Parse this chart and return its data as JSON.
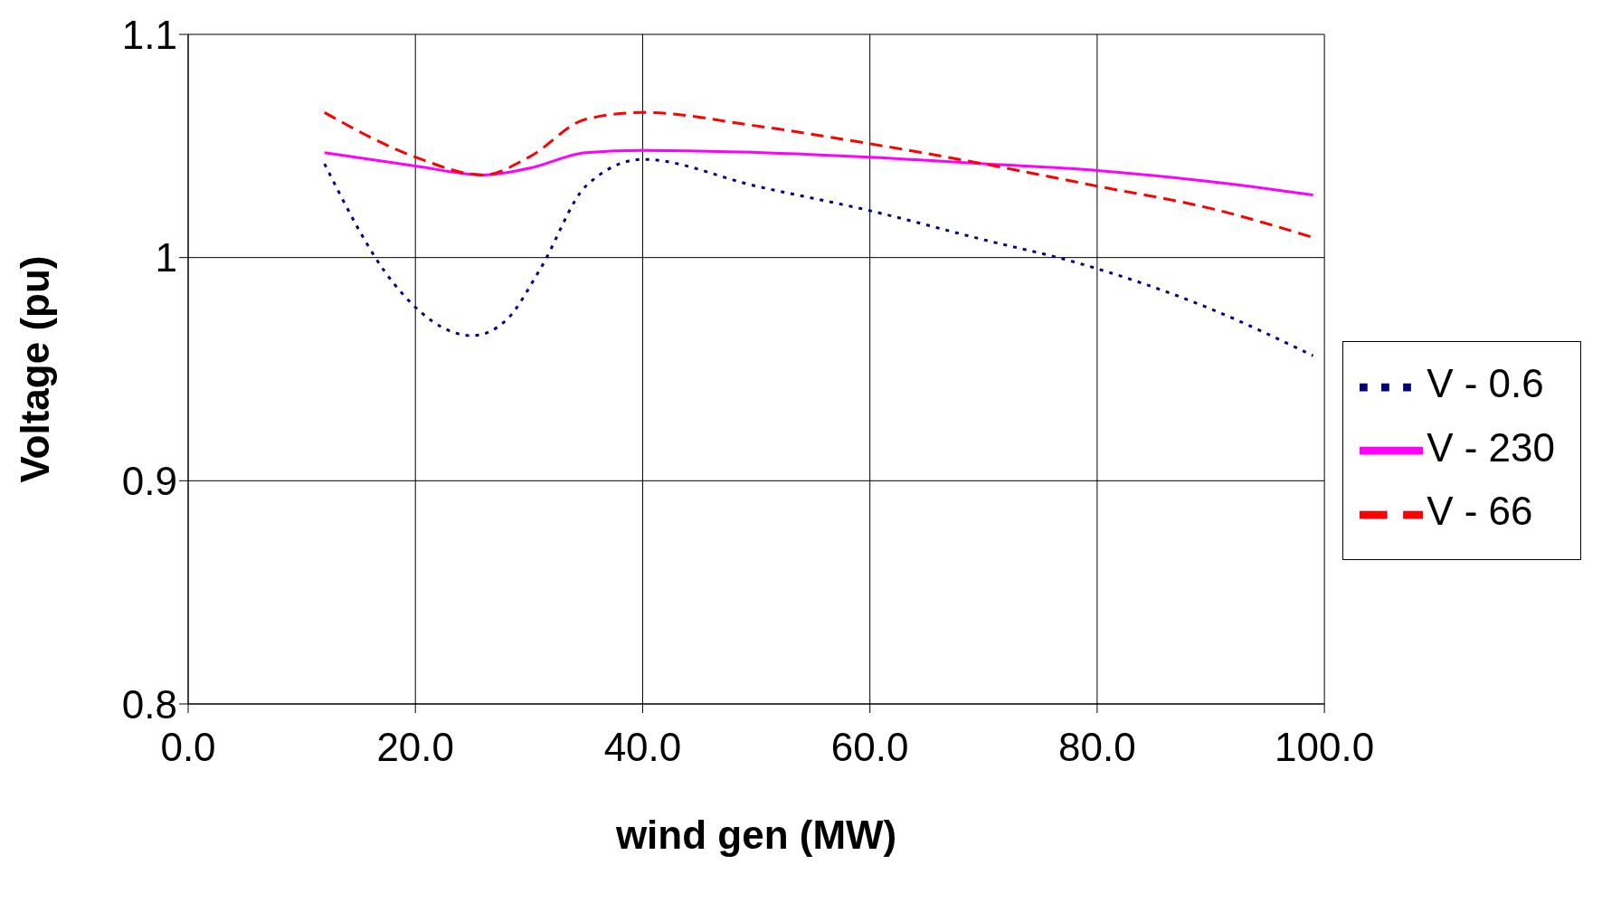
{
  "chart_data": {
    "type": "line",
    "xlabel": "wind gen (MW)",
    "ylabel": "Voltage (pu)",
    "xlim": [
      0,
      100
    ],
    "xticks": [
      {
        "value": 0,
        "label": "0.0"
      },
      {
        "value": 20,
        "label": "20.0"
      },
      {
        "value": 40,
        "label": "40.0"
      },
      {
        "value": 60,
        "label": "60.0"
      },
      {
        "value": 80,
        "label": "80.0"
      },
      {
        "value": 100,
        "label": "100.0"
      }
    ],
    "ylim": [
      0.8,
      1.1
    ],
    "yticks": [
      0.8,
      0.9,
      1,
      1.1
    ],
    "grid": true,
    "legend": "right",
    "marker": "none",
    "series": [
      {
        "name": "V - 0.6",
        "color": "#000080",
        "line_style": "dotted",
        "x": [
          12,
          18,
          25,
          28,
          31,
          35,
          40,
          50,
          60,
          70,
          78,
          90,
          99
        ],
        "values": [
          1.042,
          0.989,
          0.965,
          0.972,
          0.995,
          1.032,
          1.044,
          1.032,
          1.021,
          1.008,
          0.998,
          0.977,
          0.956
        ]
      },
      {
        "name": "V - 230",
        "color": "#ff00ff",
        "line_style": "solid",
        "x": [
          12,
          20,
          26,
          30,
          35,
          40,
          60,
          70,
          80,
          90,
          99
        ],
        "values": [
          1.047,
          1.041,
          1.037,
          1.04,
          1.047,
          1.048,
          1.045,
          1.042,
          1.039,
          1.034,
          1.028
        ]
      },
      {
        "name": "V - 66",
        "color": "#ff0000",
        "line_style": "dashed",
        "x": [
          12,
          20,
          26,
          30,
          35,
          40,
          50,
          60,
          70,
          80,
          90,
          99
        ],
        "values": [
          1.065,
          1.045,
          1.037,
          1.045,
          1.062,
          1.065,
          1.059,
          1.051,
          1.042,
          1.032,
          1.022,
          1.009
        ]
      }
    ]
  }
}
